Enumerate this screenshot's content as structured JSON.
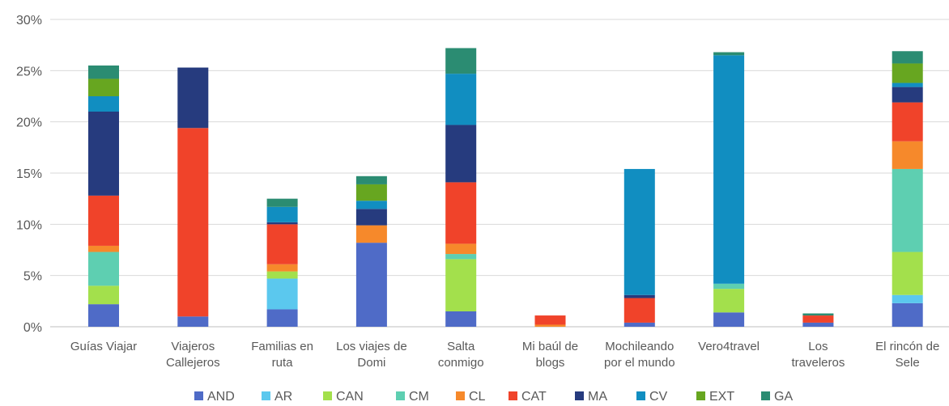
{
  "chart_data": {
    "type": "bar",
    "stacked": true,
    "title": "",
    "xlabel": "",
    "ylabel": "",
    "ylim": [
      0,
      30
    ],
    "yticks": [
      "0%",
      "5%",
      "10%",
      "15%",
      "20%",
      "25%",
      "30%"
    ],
    "grid": true,
    "legend_position": "bottom",
    "categories": [
      [
        "Guías Viajar"
      ],
      [
        "Viajeros",
        "Callejeros"
      ],
      [
        "Familias en",
        "ruta"
      ],
      [
        "Los viajes de",
        "Domi"
      ],
      [
        "Salta",
        "conmigo"
      ],
      [
        "Mi baúl de",
        "blogs"
      ],
      [
        "Mochileando",
        "por el mundo"
      ],
      [
        "Vero4travel"
      ],
      [
        "Los",
        "traveleros"
      ],
      [
        "El rincón de",
        "Sele"
      ]
    ],
    "series": [
      {
        "name": "AND",
        "color": "#4F6BC7",
        "values": [
          2.2,
          1.0,
          1.7,
          8.2,
          1.5,
          0.0,
          0.4,
          1.4,
          0.4,
          2.3
        ]
      },
      {
        "name": "AR",
        "color": "#5BC8EE",
        "values": [
          0.0,
          0.0,
          3.0,
          0.0,
          0.0,
          0.0,
          0.0,
          0.0,
          0.0,
          0.8
        ]
      },
      {
        "name": "CAN",
        "color": "#A3E04C",
        "values": [
          1.8,
          0.0,
          0.7,
          0.0,
          5.1,
          0.0,
          0.0,
          2.3,
          0.0,
          4.2
        ]
      },
      {
        "name": "CM",
        "color": "#5ECFB1",
        "values": [
          3.3,
          0.0,
          0.0,
          0.0,
          0.5,
          0.0,
          0.0,
          0.5,
          0.0,
          8.1
        ]
      },
      {
        "name": "CL",
        "color": "#F6892B",
        "values": [
          0.6,
          0.0,
          0.7,
          1.7,
          1.0,
          0.2,
          0.0,
          0.0,
          0.0,
          2.7
        ]
      },
      {
        "name": "CAT",
        "color": "#F0432A",
        "values": [
          4.9,
          18.4,
          3.9,
          0.0,
          6.0,
          0.9,
          2.4,
          0.0,
          0.7,
          3.8
        ]
      },
      {
        "name": "MA",
        "color": "#263B7E",
        "values": [
          8.2,
          5.9,
          0.2,
          1.6,
          5.6,
          0.0,
          0.3,
          0.0,
          0.0,
          1.5
        ]
      },
      {
        "name": "CV",
        "color": "#118EC1",
        "values": [
          1.5,
          0.0,
          1.5,
          0.8,
          5.0,
          0.0,
          12.3,
          22.3,
          0.0,
          0.4
        ]
      },
      {
        "name": "EXT",
        "color": "#67A620",
        "values": [
          1.7,
          0.0,
          0.0,
          1.6,
          0.0,
          0.0,
          0.0,
          0.0,
          0.0,
          1.9
        ]
      },
      {
        "name": "GA",
        "color": "#2B8C72",
        "values": [
          1.3,
          0.0,
          0.8,
          0.8,
          2.5,
          0.0,
          0.0,
          0.3,
          0.2,
          1.2
        ]
      }
    ]
  }
}
